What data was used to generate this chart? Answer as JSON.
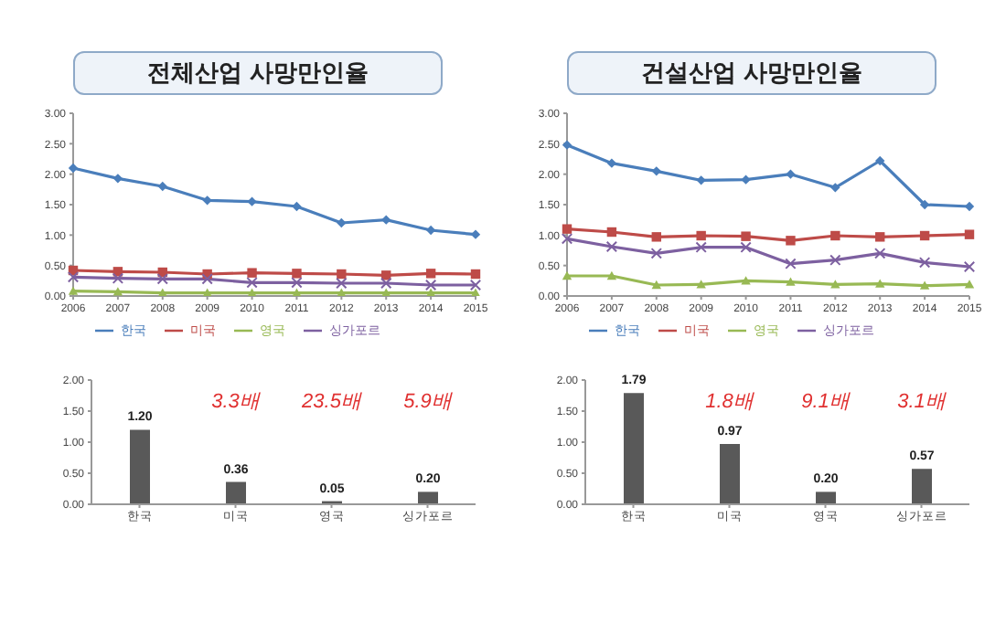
{
  "chart_data": [
    {
      "type": "line",
      "title": "전체산업 사망만인율",
      "categories": [
        "2006",
        "2007",
        "2008",
        "2009",
        "2010",
        "2011",
        "2012",
        "2013",
        "2014",
        "2015"
      ],
      "series": [
        {
          "name": "한국",
          "color": "#4a7ebb",
          "marker": "diamond",
          "values": [
            2.1,
            1.93,
            1.8,
            1.57,
            1.55,
            1.47,
            1.2,
            1.25,
            1.08,
            1.01
          ]
        },
        {
          "name": "미국",
          "color": "#be4b48",
          "marker": "square",
          "values": [
            0.42,
            0.4,
            0.39,
            0.36,
            0.38,
            0.37,
            0.36,
            0.34,
            0.37,
            0.36
          ]
        },
        {
          "name": "영국",
          "color": "#98b954",
          "marker": "triangle",
          "values": [
            0.08,
            0.07,
            0.05,
            0.05,
            0.05,
            0.05,
            0.05,
            0.05,
            0.05,
            0.05
          ]
        },
        {
          "name": "싱가포르",
          "color": "#7d60a0",
          "marker": "cross",
          "values": [
            0.31,
            0.29,
            0.28,
            0.28,
            0.22,
            0.22,
            0.21,
            0.21,
            0.18,
            0.18
          ]
        }
      ],
      "ylim": [
        0,
        3
      ],
      "yticks": [
        {
          "value": 0,
          "label": "0.00"
        },
        {
          "value": 0.5,
          "label": "0.50"
        },
        {
          "value": 1,
          "label": "1.00"
        },
        {
          "value": 1.5,
          "label": "1.50"
        },
        {
          "value": 2,
          "label": "2.00"
        },
        {
          "value": 2.5,
          "label": "2.50"
        },
        {
          "value": 3,
          "label": "3.00"
        }
      ],
      "legend": "bottom"
    },
    {
      "type": "line",
      "title": "건설산업 사망만인율",
      "categories": [
        "2006",
        "2007",
        "2008",
        "2009",
        "2010",
        "2011",
        "2012",
        "2013",
        "2014",
        "2015"
      ],
      "series": [
        {
          "name": "한국",
          "color": "#4a7ebb",
          "marker": "diamond",
          "values": [
            2.48,
            2.18,
            2.05,
            1.9,
            1.91,
            2.0,
            1.78,
            2.22,
            1.5,
            1.47
          ]
        },
        {
          "name": "미국",
          "color": "#be4b48",
          "marker": "square",
          "values": [
            1.1,
            1.05,
            0.97,
            0.99,
            0.98,
            0.91,
            0.99,
            0.97,
            0.99,
            1.01
          ]
        },
        {
          "name": "영국",
          "color": "#98b954",
          "marker": "triangle",
          "values": [
            0.33,
            0.33,
            0.18,
            0.19,
            0.25,
            0.23,
            0.19,
            0.2,
            0.17,
            0.19
          ]
        },
        {
          "name": "싱가포르",
          "color": "#7d60a0",
          "marker": "cross",
          "values": [
            0.94,
            0.81,
            0.7,
            0.8,
            0.8,
            0.53,
            0.59,
            0.7,
            0.55,
            0.48
          ]
        }
      ],
      "ylim": [
        0,
        3
      ],
      "yticks": [
        {
          "value": 0,
          "label": "0.00"
        },
        {
          "value": 0.5,
          "label": "0.50"
        },
        {
          "value": 1,
          "label": "1.00"
        },
        {
          "value": 1.5,
          "label": "1.50"
        },
        {
          "value": 2,
          "label": "2.00"
        },
        {
          "value": 2.5,
          "label": "2.50"
        },
        {
          "value": 3,
          "label": "3.00"
        }
      ],
      "legend": "bottom"
    },
    {
      "type": "bar",
      "categories": [
        "한국",
        "미국",
        "영국",
        "싱가포르"
      ],
      "values": [
        1.2,
        0.36,
        0.05,
        0.2
      ],
      "color": "#595959",
      "value_labels": [
        "1.20",
        "0.36",
        "0.05",
        "0.20"
      ],
      "ylim": [
        0,
        2
      ],
      "yticks": [
        {
          "value": 0,
          "label": "0.00"
        },
        {
          "value": 0.5,
          "label": "0.50"
        },
        {
          "value": 1,
          "label": "1.00"
        },
        {
          "value": 1.5,
          "label": "1.50"
        },
        {
          "value": 2,
          "label": "2.00"
        }
      ],
      "annotations": [
        "3.3배",
        "23.5배",
        "5.9배"
      ]
    },
    {
      "type": "bar",
      "categories": [
        "한국",
        "미국",
        "영국",
        "싱가포르"
      ],
      "values": [
        1.79,
        0.97,
        0.2,
        0.57
      ],
      "color": "#595959",
      "value_labels": [
        "1.79",
        "0.97",
        "0.20",
        "0.57"
      ],
      "ylim": [
        0,
        2
      ],
      "yticks": [
        {
          "value": 0,
          "label": "0.00"
        },
        {
          "value": 0.5,
          "label": "0.50"
        },
        {
          "value": 1,
          "label": "1.00"
        },
        {
          "value": 1.5,
          "label": "1.50"
        },
        {
          "value": 2,
          "label": "2.00"
        }
      ],
      "annotations": [
        "1.8배",
        "9.1배",
        "3.1배"
      ]
    }
  ]
}
